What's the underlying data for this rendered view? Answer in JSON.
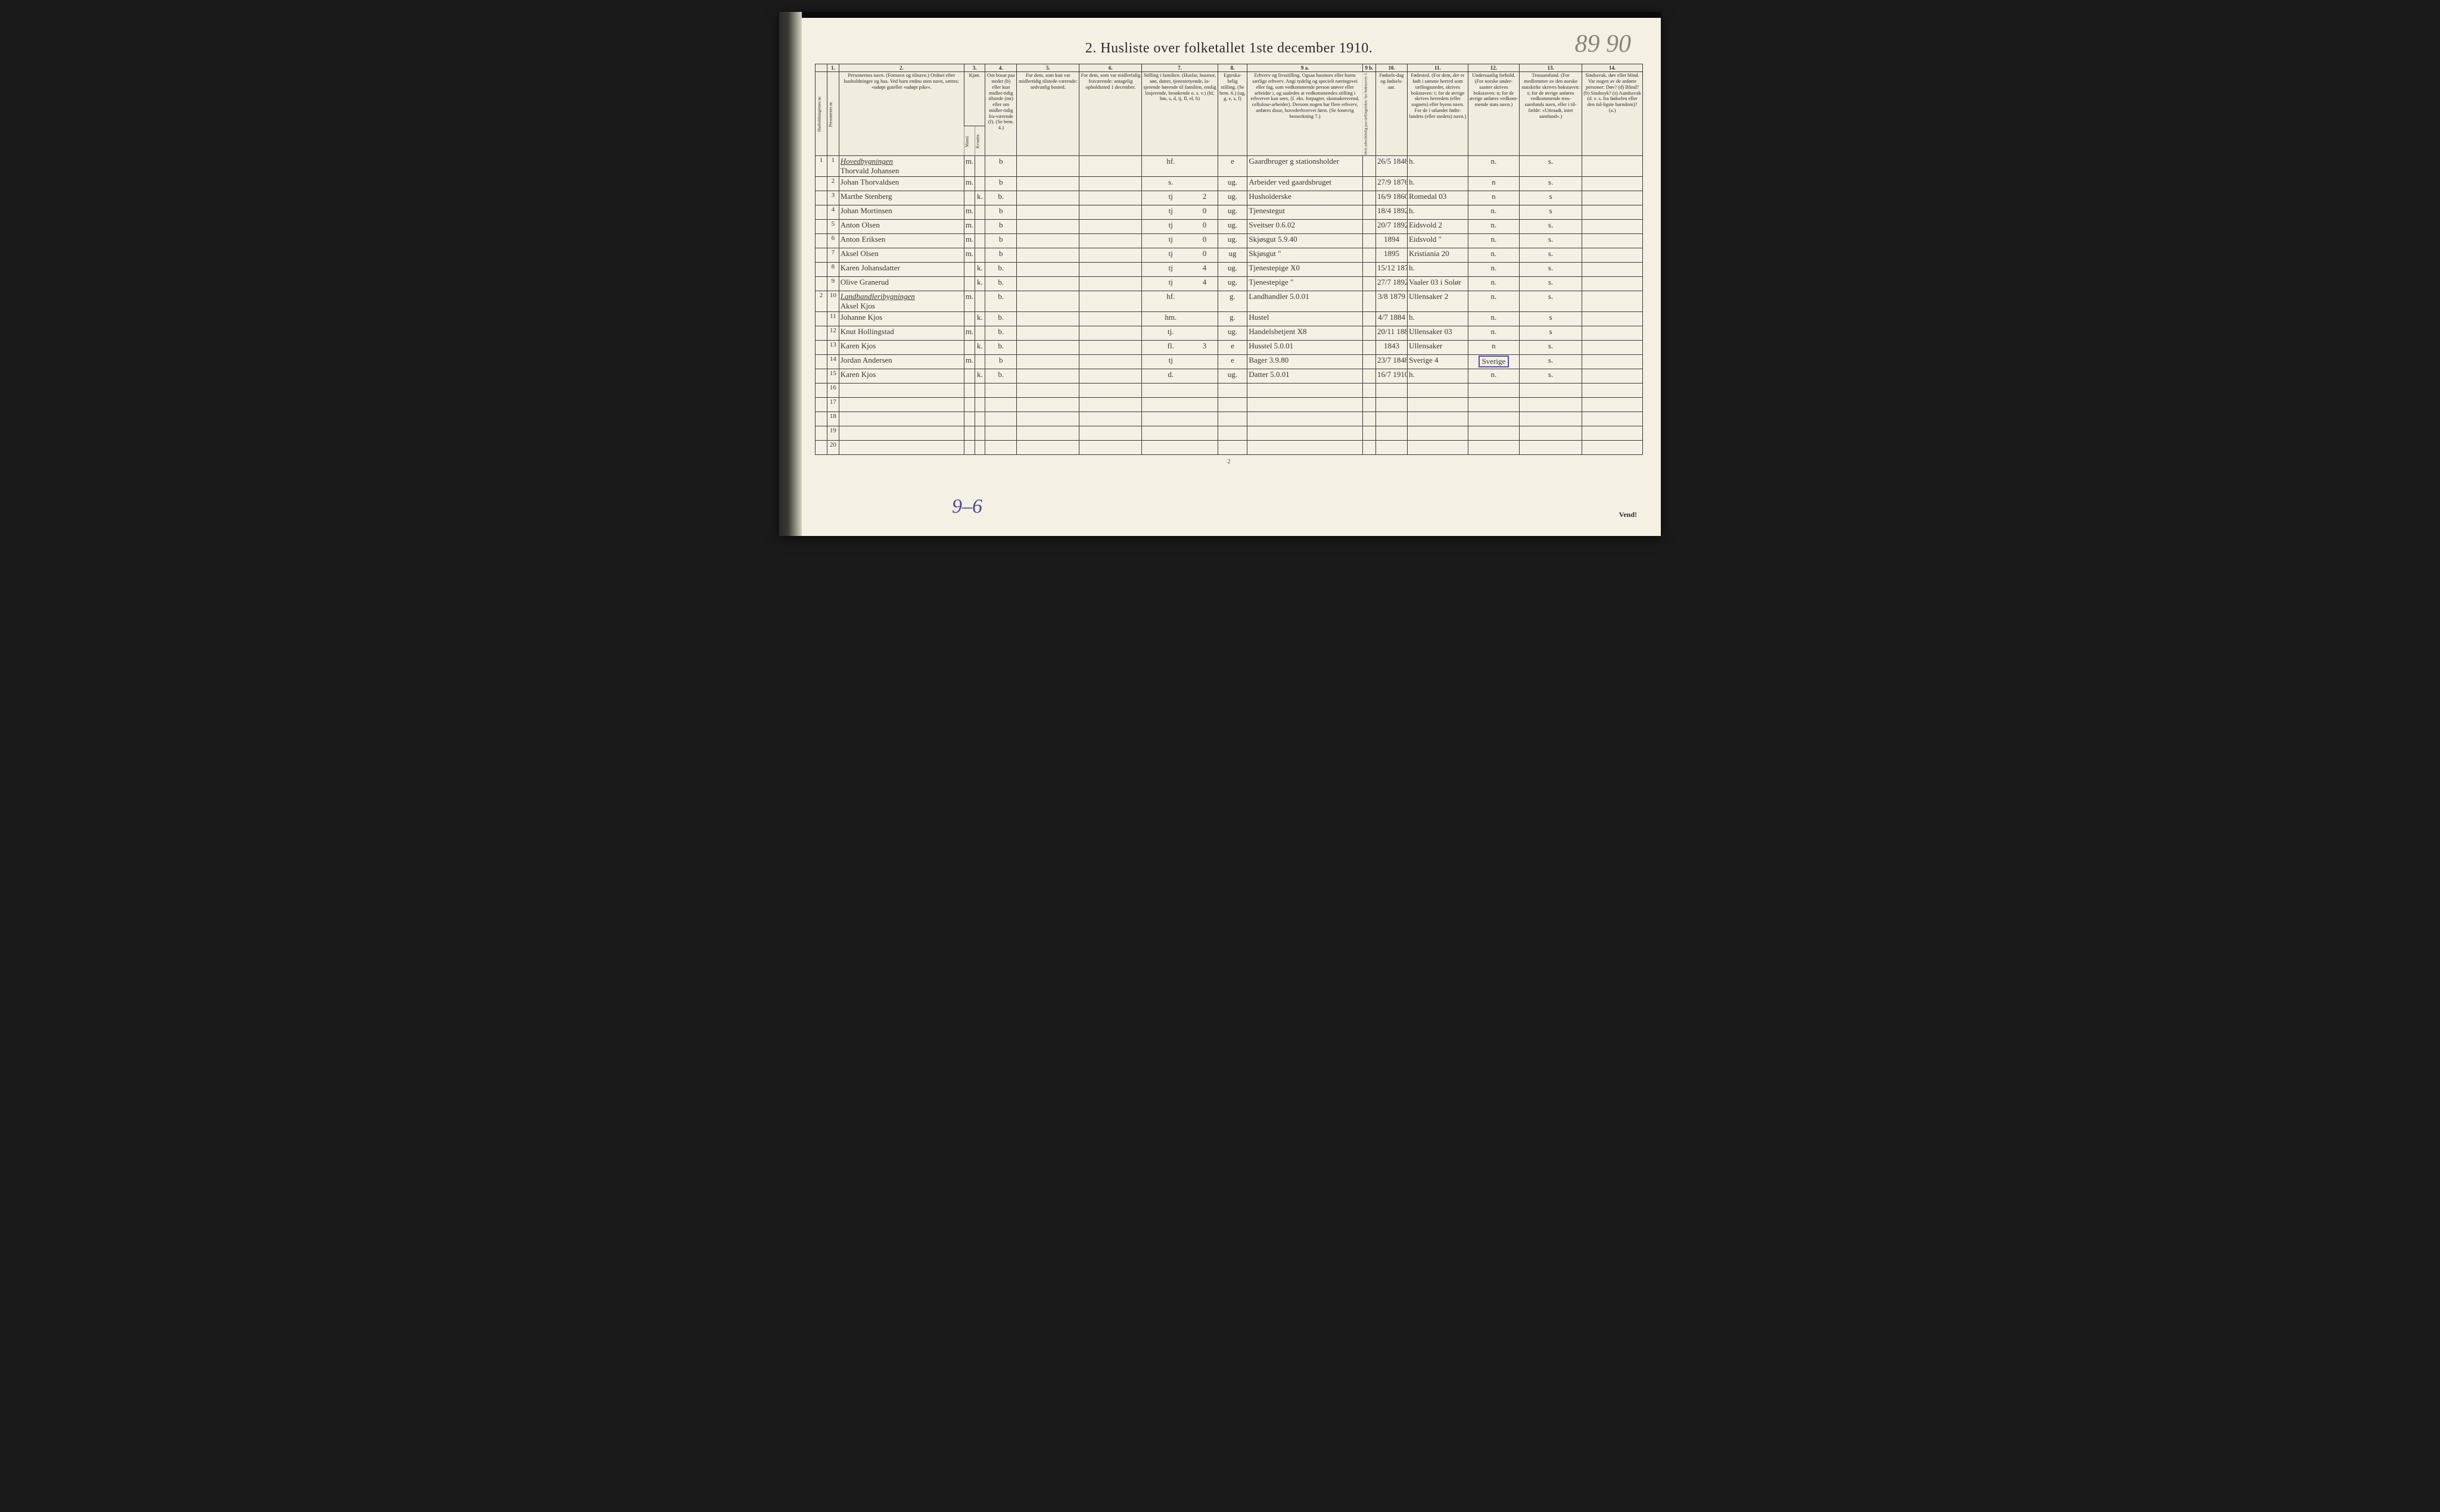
{
  "document": {
    "title": "2.  Husliste over folketallet 1ste december 1910.",
    "page_number_top": "89 90",
    "footer_page": "2",
    "bottom_left_note": "9–6",
    "bottom_right_note": "Vend!",
    "background_color": "#f4f0e4",
    "ink_color": "#2a2a2a",
    "handwriting_color": "#3a3530",
    "pencil_color": "#8a8578",
    "blue_ink": "#4a4a9a"
  },
  "columns": {
    "nums": [
      "",
      "1.",
      "2.",
      "3.",
      "4.",
      "5.",
      "6.",
      "7.",
      "8.",
      "9 a.",
      "9 b.",
      "10.",
      "11.",
      "12.",
      "13.",
      "14."
    ],
    "h_household": "Husholdningernes nr.",
    "h_person": "Personernes nr.",
    "h_name": "Personernes navn.\n(Fornavn og tilnavn.)\nOrdnet efter husholdninger og hus.\nVed barn endnu uten navn, sættes: «udøpt guteller «udøpt pike».",
    "h_sex": "Kjøn.",
    "h_sex_m": "Mænd.",
    "h_sex_k": "Kvinder.",
    "h_sex_sub": "m.  k.",
    "h_res": "Om bosat paa stedet (b) eller kun midler-tidig tilstede (mt) eller om midler-tidig fra-værende (f). (Se bem. 4.)",
    "h_5": "For dem, som kun var midlertidig tilstede-værende:\nsedvanlig bosted.",
    "h_6": "For dem, som var midlertidig fraværende:\nantagelig opholdssted 1 december.",
    "h_7": "Stilling i familien.\n(Husfar, husmor, søn, datter, tjenestetyende, lo-sjerende hørende til familien, enslig losjerende, besøkende o. s. v.)\n(hf, hm, s, d, tj, fl, el, b)",
    "h_8": "Egteska-belig stilling.\n(Se bem. 6.)\n(ug, g, e, s, f)",
    "h_9a": "Erhverv og livsstilling.\nOgsaa husmors eller barns særlige erhverv. Angi tydelig og specielt næringsvei eller fag, som vedkommende person utøver eller arbeider i, og saaledes at vedkommendes stilling i erhvervet kan sees, (f. eks. forpagter, skomakersvend, cellulose-arbeider). Dersom nogen har flere erhverv, anføres disse, hovederhvervet først.\n(Se forøvrig bemerkning 7.)",
    "h_9b": "Hvis arbeidsledig paa tællingstiden: her bokstaven: l.",
    "h_10": "Fødsels-dag og fødsels-aar.",
    "h_11": "Fødested.\n(For dem, der er født i samme herred som tællingsstedet, skrives bokstaven: t; for de øvrige skrives herredets (eller sognets) eller byens navn. For de i utlandet fødte: landets (eller stedets) navn.)",
    "h_12": "Undersaatlig forhold.\n(For norske under-saatter skrives bokstaven: n; for de øvrige anføres vedkom-mende stats navn.)",
    "h_13": "Trossamfund.\n(For medlemmer av den norske statskirke skrives bokstaven: s; for de øvrige anføres vedkommende tros-samfunds navn, eller i til-fælde: «Uttraadt, intet samfund».)",
    "h_14": "Sindssvak, døv eller blind.\nVar nogen av de anførte personer:\nDøv? (d)\nBlind? (b)\nSindssyk? (s)\nAandssvak (d. v. s. fra fødselen eller den tid-ligste barndom)? (a.)"
  },
  "rows": [
    {
      "hh": "1",
      "pn": "1",
      "heading": "Hovedbygningen",
      "name": "Thorvald Johansen",
      "sex_m": "m.",
      "sex_k": "",
      "res": "b",
      "c5": "",
      "c6": "",
      "c7": "hf.",
      "c7b": "",
      "c8": "e",
      "c9a": "Gaardbruger g stationsholder",
      "c9b": "",
      "c10": "26/5 1848",
      "c11": "h.",
      "c12": "n.",
      "c13": "s.",
      "c14": ""
    },
    {
      "hh": "",
      "pn": "2",
      "name": "Johan Thorvaldsen",
      "sex_m": "m.",
      "sex_k": "",
      "res": "b",
      "c5": "",
      "c6": "",
      "c7": "s.",
      "c7b": "",
      "c8": "ug.",
      "c9a": "Arbeider ved gaardsbruget",
      "c9b": "",
      "c10": "27/9 1876",
      "c11": "h.",
      "c12": "n",
      "c13": "s.",
      "c14": ""
    },
    {
      "hh": "",
      "pn": "3",
      "name": "Marthe Stenberg",
      "sex_m": "",
      "sex_k": "k.",
      "res": "b.",
      "c5": "",
      "c6": "",
      "c7": "tj",
      "c7b": "2",
      "c8": "ug.",
      "c9a": "Husholderske",
      "c9b": "",
      "c10": "16/9 1860",
      "c11": "Romedal 03",
      "c12": "n",
      "c13": "s",
      "c14": ""
    },
    {
      "hh": "",
      "pn": "4",
      "name": "Johan Mortinsen",
      "sex_m": "m.",
      "sex_k": "",
      "res": "b",
      "c5": "",
      "c6": "",
      "c7": "tj",
      "c7b": "0",
      "c8": "ug.",
      "c9a": "Tjenestegut",
      "c9b": "",
      "c10": "18/4 1892",
      "c11": "h.",
      "c12": "n.",
      "c13": "s",
      "c14": ""
    },
    {
      "hh": "",
      "pn": "5",
      "name": "Anton Olsen",
      "sex_m": "m.",
      "sex_k": "",
      "res": "b",
      "c5": "",
      "c6": "",
      "c7": "tj",
      "c7b": "0",
      "c8": "ug.",
      "c9a": "Sveitser   0.6.02",
      "c9b": "",
      "c10": "20/7 1892",
      "c11": "Eidsvold 2",
      "c12": "n.",
      "c13": "s.",
      "c14": ""
    },
    {
      "hh": "",
      "pn": "6",
      "name": "Anton Eriksen",
      "sex_m": "m.",
      "sex_k": "",
      "res": "b",
      "c5": "",
      "c6": "",
      "c7": "tj",
      "c7b": "0",
      "c8": "ug.",
      "c9a": "Skjøsgut  5.9.40",
      "c9b": "",
      "c10": "1894",
      "c11": "Eidsvold \"",
      "c12": "n.",
      "c13": "s.",
      "c14": ""
    },
    {
      "hh": "",
      "pn": "7",
      "name": "Aksel Olsen",
      "sex_m": "m.",
      "sex_k": "",
      "res": "b",
      "c5": "",
      "c6": "",
      "c7": "tj",
      "c7b": "0",
      "c8": "ug",
      "c9a": "Skjøsgut  \"",
      "c9b": "",
      "c10": "1895",
      "c11": "Kristiania 20",
      "c12": "n.",
      "c13": "s.",
      "c14": ""
    },
    {
      "hh": "",
      "pn": "8",
      "name": "Karen Johansdatter",
      "sex_m": "",
      "sex_k": "k.",
      "res": "b.",
      "c5": "",
      "c6": "",
      "c7": "tj",
      "c7b": "4",
      "c8": "ug.",
      "c9a": "Tjenestepige X0",
      "c9b": "",
      "c10": "15/12 1870 1",
      "c11": "h.",
      "c12": "n.",
      "c13": "s.",
      "c14": ""
    },
    {
      "hh": "",
      "pn": "9",
      "name": "Olive Granerud",
      "sex_m": "",
      "sex_k": "k.",
      "res": "b.",
      "c5": "",
      "c6": "",
      "c7": "tj",
      "c7b": "4",
      "c8": "ug.",
      "c9a": "Tjenestepige \"",
      "c9b": "",
      "c10": "27/7 1892",
      "c11": "Vaaler 03 i Solør",
      "c12": "n.",
      "c13": "s.",
      "c14": ""
    },
    {
      "hh": "2",
      "pn": "10",
      "heading": "Landhandleribygningen",
      "name": "Aksel Kjos",
      "sex_m": "m.",
      "sex_k": "",
      "res": "b.",
      "c5": "",
      "c6": "",
      "c7": "hf.",
      "c7b": "",
      "c8": "g.",
      "c9a": "Landhandler 5.0.01",
      "c9b": "",
      "c10": "3/8 1879",
      "c11": "Ullensaker 2",
      "c12": "n.",
      "c13": "s.",
      "c14": ""
    },
    {
      "hh": "",
      "pn": "11",
      "name": "Johanne Kjos",
      "sex_m": "",
      "sex_k": "k.",
      "res": "b.",
      "c5": "",
      "c6": "",
      "c7": "hm.",
      "c7b": "",
      "c8": "g.",
      "c9a": "Hustel",
      "c9b": "",
      "c10": "4/7 1884",
      "c11": "h.",
      "c12": "n.",
      "c13": "s",
      "c14": ""
    },
    {
      "hh": "",
      "pn": "12",
      "name": "Knut Hollingstad",
      "sex_m": "m.",
      "sex_k": "",
      "res": "b.",
      "c5": "",
      "c6": "",
      "c7": "tj.",
      "c7b": "",
      "c8": "ug.",
      "c9a": "Handelsbetjent X8",
      "c9b": "",
      "c10": "20/11 1889",
      "c11": "Ullensaker 03",
      "c12": "n.",
      "c13": "s",
      "c14": ""
    },
    {
      "hh": "",
      "pn": "13",
      "name": "Karen Kjos",
      "sex_m": "",
      "sex_k": "k.",
      "res": "b.",
      "c5": "",
      "c6": "",
      "c7": "fl.",
      "c7b": "3",
      "c8": "e",
      "c9a": "Husstel 5.0.01",
      "c9b": "",
      "c10": "1843",
      "c11": "Ullensaker",
      "c12": "n",
      "c13": "s.",
      "c14": ""
    },
    {
      "hh": "",
      "pn": "14",
      "name": "Jordan Andersen",
      "sex_m": "m.",
      "sex_k": "",
      "res": "b",
      "c5": "",
      "c6": "",
      "c7": "tj",
      "c7b": "",
      "c8": "e",
      "c9a": "Bager   3.9.80",
      "c9b": "",
      "c10": "23/7 1848",
      "c11": "Sverige 4",
      "c12": "Sverige",
      "c12_boxed": true,
      "c13": "s.",
      "c14": ""
    },
    {
      "hh": "",
      "pn": "15",
      "name": "Karen Kjos",
      "sex_m": "",
      "sex_k": "k.",
      "res": "b.",
      "c5": "",
      "c6": "",
      "c7": "d.",
      "c7b": "",
      "c8": "ug.",
      "c9a": "Datter   5.0.01",
      "c9b": "",
      "c10": "16/7 1910",
      "c11": "h.",
      "c12": "n.",
      "c13": "s.",
      "c14": ""
    },
    {
      "hh": "",
      "pn": "16",
      "name": "",
      "sex_m": "",
      "sex_k": "",
      "res": "",
      "c5": "",
      "c6": "",
      "c7": "",
      "c7b": "",
      "c8": "",
      "c9a": "",
      "c9b": "",
      "c10": "",
      "c11": "",
      "c12": "",
      "c13": "",
      "c14": ""
    },
    {
      "hh": "",
      "pn": "17",
      "name": "",
      "sex_m": "",
      "sex_k": "",
      "res": "",
      "c5": "",
      "c6": "",
      "c7": "",
      "c7b": "",
      "c8": "",
      "c9a": "",
      "c9b": "",
      "c10": "",
      "c11": "",
      "c12": "",
      "c13": "",
      "c14": ""
    },
    {
      "hh": "",
      "pn": "18",
      "name": "",
      "sex_m": "",
      "sex_k": "",
      "res": "",
      "c5": "",
      "c6": "",
      "c7": "",
      "c7b": "",
      "c8": "",
      "c9a": "",
      "c9b": "",
      "c10": "",
      "c11": "",
      "c12": "",
      "c13": "",
      "c14": ""
    },
    {
      "hh": "",
      "pn": "19",
      "name": "",
      "sex_m": "",
      "sex_k": "",
      "res": "",
      "c5": "",
      "c6": "",
      "c7": "",
      "c7b": "",
      "c8": "",
      "c9a": "",
      "c9b": "",
      "c10": "",
      "c11": "",
      "c12": "",
      "c13": "",
      "c14": ""
    },
    {
      "hh": "",
      "pn": "20",
      "name": "",
      "sex_m": "",
      "sex_k": "",
      "res": "",
      "c5": "",
      "c6": "",
      "c7": "",
      "c7b": "",
      "c8": "",
      "c9a": "",
      "c9b": "",
      "c10": "",
      "c11": "",
      "c12": "",
      "c13": "",
      "c14": ""
    }
  ]
}
